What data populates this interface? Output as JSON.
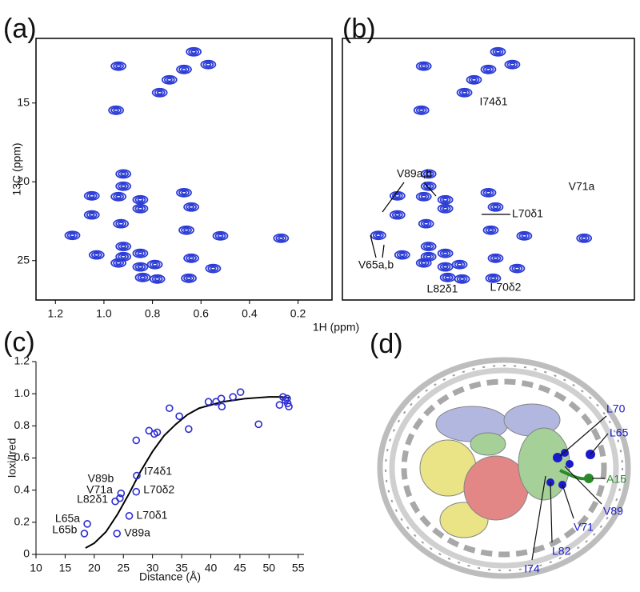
{
  "chart_data": [
    {
      "type": "contour",
      "label": "(a)",
      "xlabel": "1H (ppm)",
      "ylabel": "13C (ppm)",
      "color": "#2b3bd6",
      "xlim": [
        1.28,
        0.06
      ],
      "ylim": [
        27.5,
        10.9
      ],
      "xticks": [
        1.2,
        {
          "value": 1,
          "label": "1.0"
        },
        0.8,
        0.6,
        0.4,
        0.2
      ],
      "yticks": [
        15,
        20,
        25
      ],
      "x": [
        0.63,
        0.57,
        0.94,
        0.67,
        0.73,
        0.77,
        0.95,
        0.92,
        0.92,
        1.05,
        0.94,
        0.85,
        0.67,
        1.05,
        0.85,
        0.64,
        0.93,
        0.66,
        1.13,
        0.27,
        0.52,
        0.92,
        1.03,
        0.92,
        0.94,
        0.85,
        0.79,
        0.64,
        0.55,
        0.84,
        0.78,
        0.65,
        0.85
      ],
      "values": [
        11.75,
        12.56,
        12.66,
        12.87,
        13.53,
        14.34,
        15.46,
        19.5,
        20.28,
        20.89,
        20.94,
        21.14,
        20.69,
        22.1,
        21.7,
        21.6,
        22.66,
        23.07,
        23.4,
        23.58,
        23.43,
        24.1,
        24.64,
        24.75,
        25.15,
        24.54,
        25.25,
        24.85,
        25.5,
        26.07,
        26.17,
        26.12,
        25.4
      ]
    },
    {
      "type": "contour",
      "label": "(b)",
      "color": "#2b3bd6",
      "xlim": [
        1.28,
        0.06
      ],
      "ylim": [
        27.5,
        10.9
      ],
      "x": [
        0.63,
        0.57,
        0.94,
        0.67,
        0.73,
        0.77,
        0.95,
        0.92,
        0.92,
        1.05,
        0.94,
        0.85,
        0.67,
        1.05,
        0.85,
        0.64,
        0.93,
        0.66,
        1.13,
        0.27,
        0.52,
        0.92,
        1.03,
        0.92,
        0.94,
        0.85,
        0.79,
        0.64,
        0.55,
        0.84,
        0.78,
        0.65,
        0.85
      ],
      "values": [
        11.75,
        12.56,
        12.66,
        12.87,
        13.53,
        14.34,
        15.46,
        19.5,
        20.28,
        20.89,
        20.94,
        21.14,
        20.69,
        22.1,
        21.7,
        21.6,
        22.66,
        23.07,
        23.4,
        23.58,
        23.43,
        24.1,
        24.64,
        24.75,
        25.15,
        24.54,
        25.25,
        24.85,
        25.5,
        26.07,
        26.17,
        26.12,
        25.4
      ],
      "annotations": [
        "I74δ1",
        "V89a,b",
        "V71a",
        "L70δ1",
        "V65a,b",
        "L82δ1",
        "L70δ2"
      ]
    },
    {
      "type": "scatter",
      "label": "(c)",
      "xlabel": "Distance (Å)",
      "ylabel": "Ioxi/Ired",
      "color": "#2b2bd0",
      "xlim": [
        10,
        56
      ],
      "ylim": [
        0,
        1.2
      ],
      "xticks": [
        10,
        15,
        20,
        25,
        30,
        35,
        40,
        45,
        50,
        55
      ],
      "yticks": [
        0,
        0.2,
        0.4,
        0.6,
        0.8,
        {
          "value": 1,
          "label": "1.0"
        },
        1.2
      ],
      "x": [
        18.8,
        18.3,
        23.9,
        26,
        23.6,
        24.4,
        24.6,
        27.2,
        27.3,
        27.2,
        29.4,
        30.3,
        30.8,
        32.9,
        34.6,
        36.2,
        39.6,
        40.9,
        41.8,
        41.9,
        43.8,
        45.1,
        48.2,
        51.8,
        52.4,
        52.8,
        53.2,
        53.4,
        53.1
      ],
      "values": [
        0.19,
        0.13,
        0.13,
        0.24,
        0.33,
        0.35,
        0.38,
        0.39,
        0.49,
        0.71,
        0.77,
        0.75,
        0.76,
        0.91,
        0.86,
        0.78,
        0.95,
        0.95,
        0.97,
        0.92,
        0.98,
        1.01,
        0.81,
        0.93,
        0.98,
        0.96,
        0.94,
        0.92,
        0.97
      ],
      "point_labels": [
        "L65a",
        "L65b",
        "V89a",
        "L70δ1",
        "L82δ1",
        "V71a",
        "V89b",
        "L70δ2",
        "I74δ1",
        null,
        null,
        null,
        null,
        null,
        null,
        null,
        null,
        null,
        null,
        null,
        null,
        null,
        null,
        null,
        null,
        null,
        null,
        null,
        null
      ],
      "fit": {
        "color": "#000000",
        "x": [
          18.5,
          20,
          22,
          24,
          26,
          28,
          30,
          32,
          34,
          36,
          38,
          40,
          42,
          44,
          46,
          48,
          50,
          52,
          53.5
        ],
        "values": [
          0.04,
          0.07,
          0.14,
          0.25,
          0.38,
          0.52,
          0.64,
          0.74,
          0.81,
          0.87,
          0.91,
          0.93,
          0.95,
          0.96,
          0.97,
          0.975,
          0.98,
          0.98,
          0.975
        ]
      }
    }
  ],
  "figure_d": {
    "label": "(d)",
    "residues": [
      {
        "name": "L70",
        "color": "#1a1acc"
      },
      {
        "name": "L65",
        "color": "#1a1acc"
      },
      {
        "name": "A15",
        "color": "#2a8a2a"
      },
      {
        "name": "V89",
        "color": "#1a1acc"
      },
      {
        "name": "V71",
        "color": "#1a1acc"
      },
      {
        "name": "L82",
        "color": "#1a1acc"
      },
      {
        "name": "I74",
        "color": "#1a1acc"
      }
    ]
  }
}
